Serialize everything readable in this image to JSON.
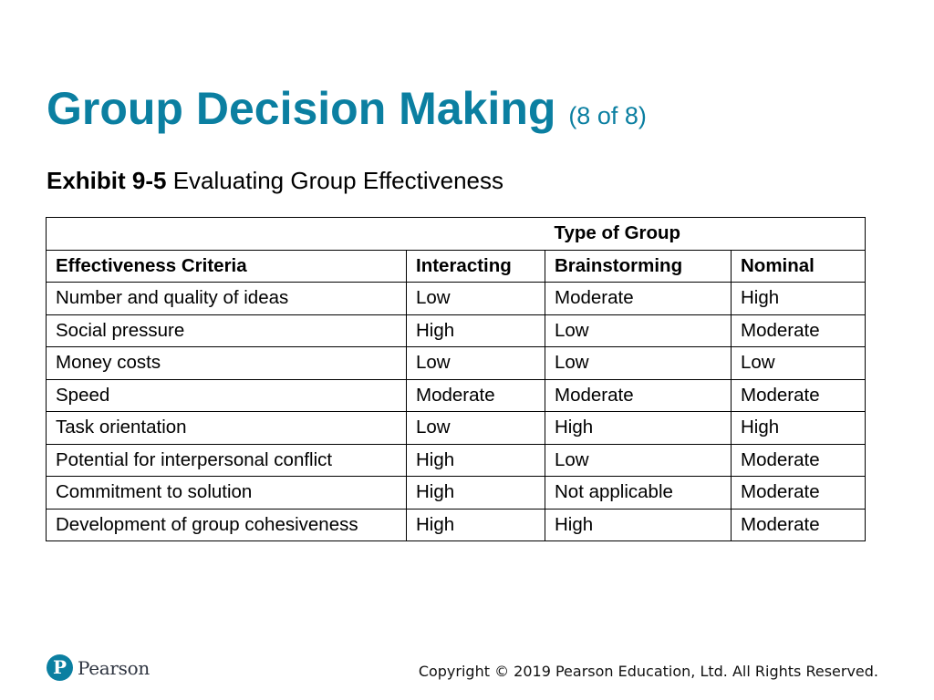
{
  "slide": {
    "title": "Group Decision Making",
    "title_suffix": "(8 of 8)",
    "exhibit_label": "Exhibit 9-5",
    "exhibit_title": "Evaluating Group Effectiveness"
  },
  "table": {
    "group_header": "Type of Group",
    "columns": [
      "Effectiveness Criteria",
      "Interacting",
      "Brainstorming",
      "Nominal"
    ],
    "rows": [
      [
        "Number and quality of ideas",
        "Low",
        "Moderate",
        "High"
      ],
      [
        "Social pressure",
        "High",
        "Low",
        "Moderate"
      ],
      [
        "Money costs",
        "Low",
        "Low",
        "Low"
      ],
      [
        "Speed",
        "Moderate",
        "Moderate",
        "Moderate"
      ],
      [
        "Task orientation",
        "Low",
        "High",
        "High"
      ],
      [
        "Potential for interpersonal conflict",
        "High",
        "Low",
        "Moderate"
      ],
      [
        "Commitment to solution",
        "High",
        "Not applicable",
        "Moderate"
      ],
      [
        "Development of group cohesiveness",
        "High",
        "High",
        "Moderate"
      ]
    ]
  },
  "footer": {
    "logo_glyph": "P",
    "brand": "Pearson",
    "copyright": "Copyright © 2019 Pearson Education, Ltd. All Rights Reserved."
  },
  "colors": {
    "accent": "#0b7fa1"
  }
}
